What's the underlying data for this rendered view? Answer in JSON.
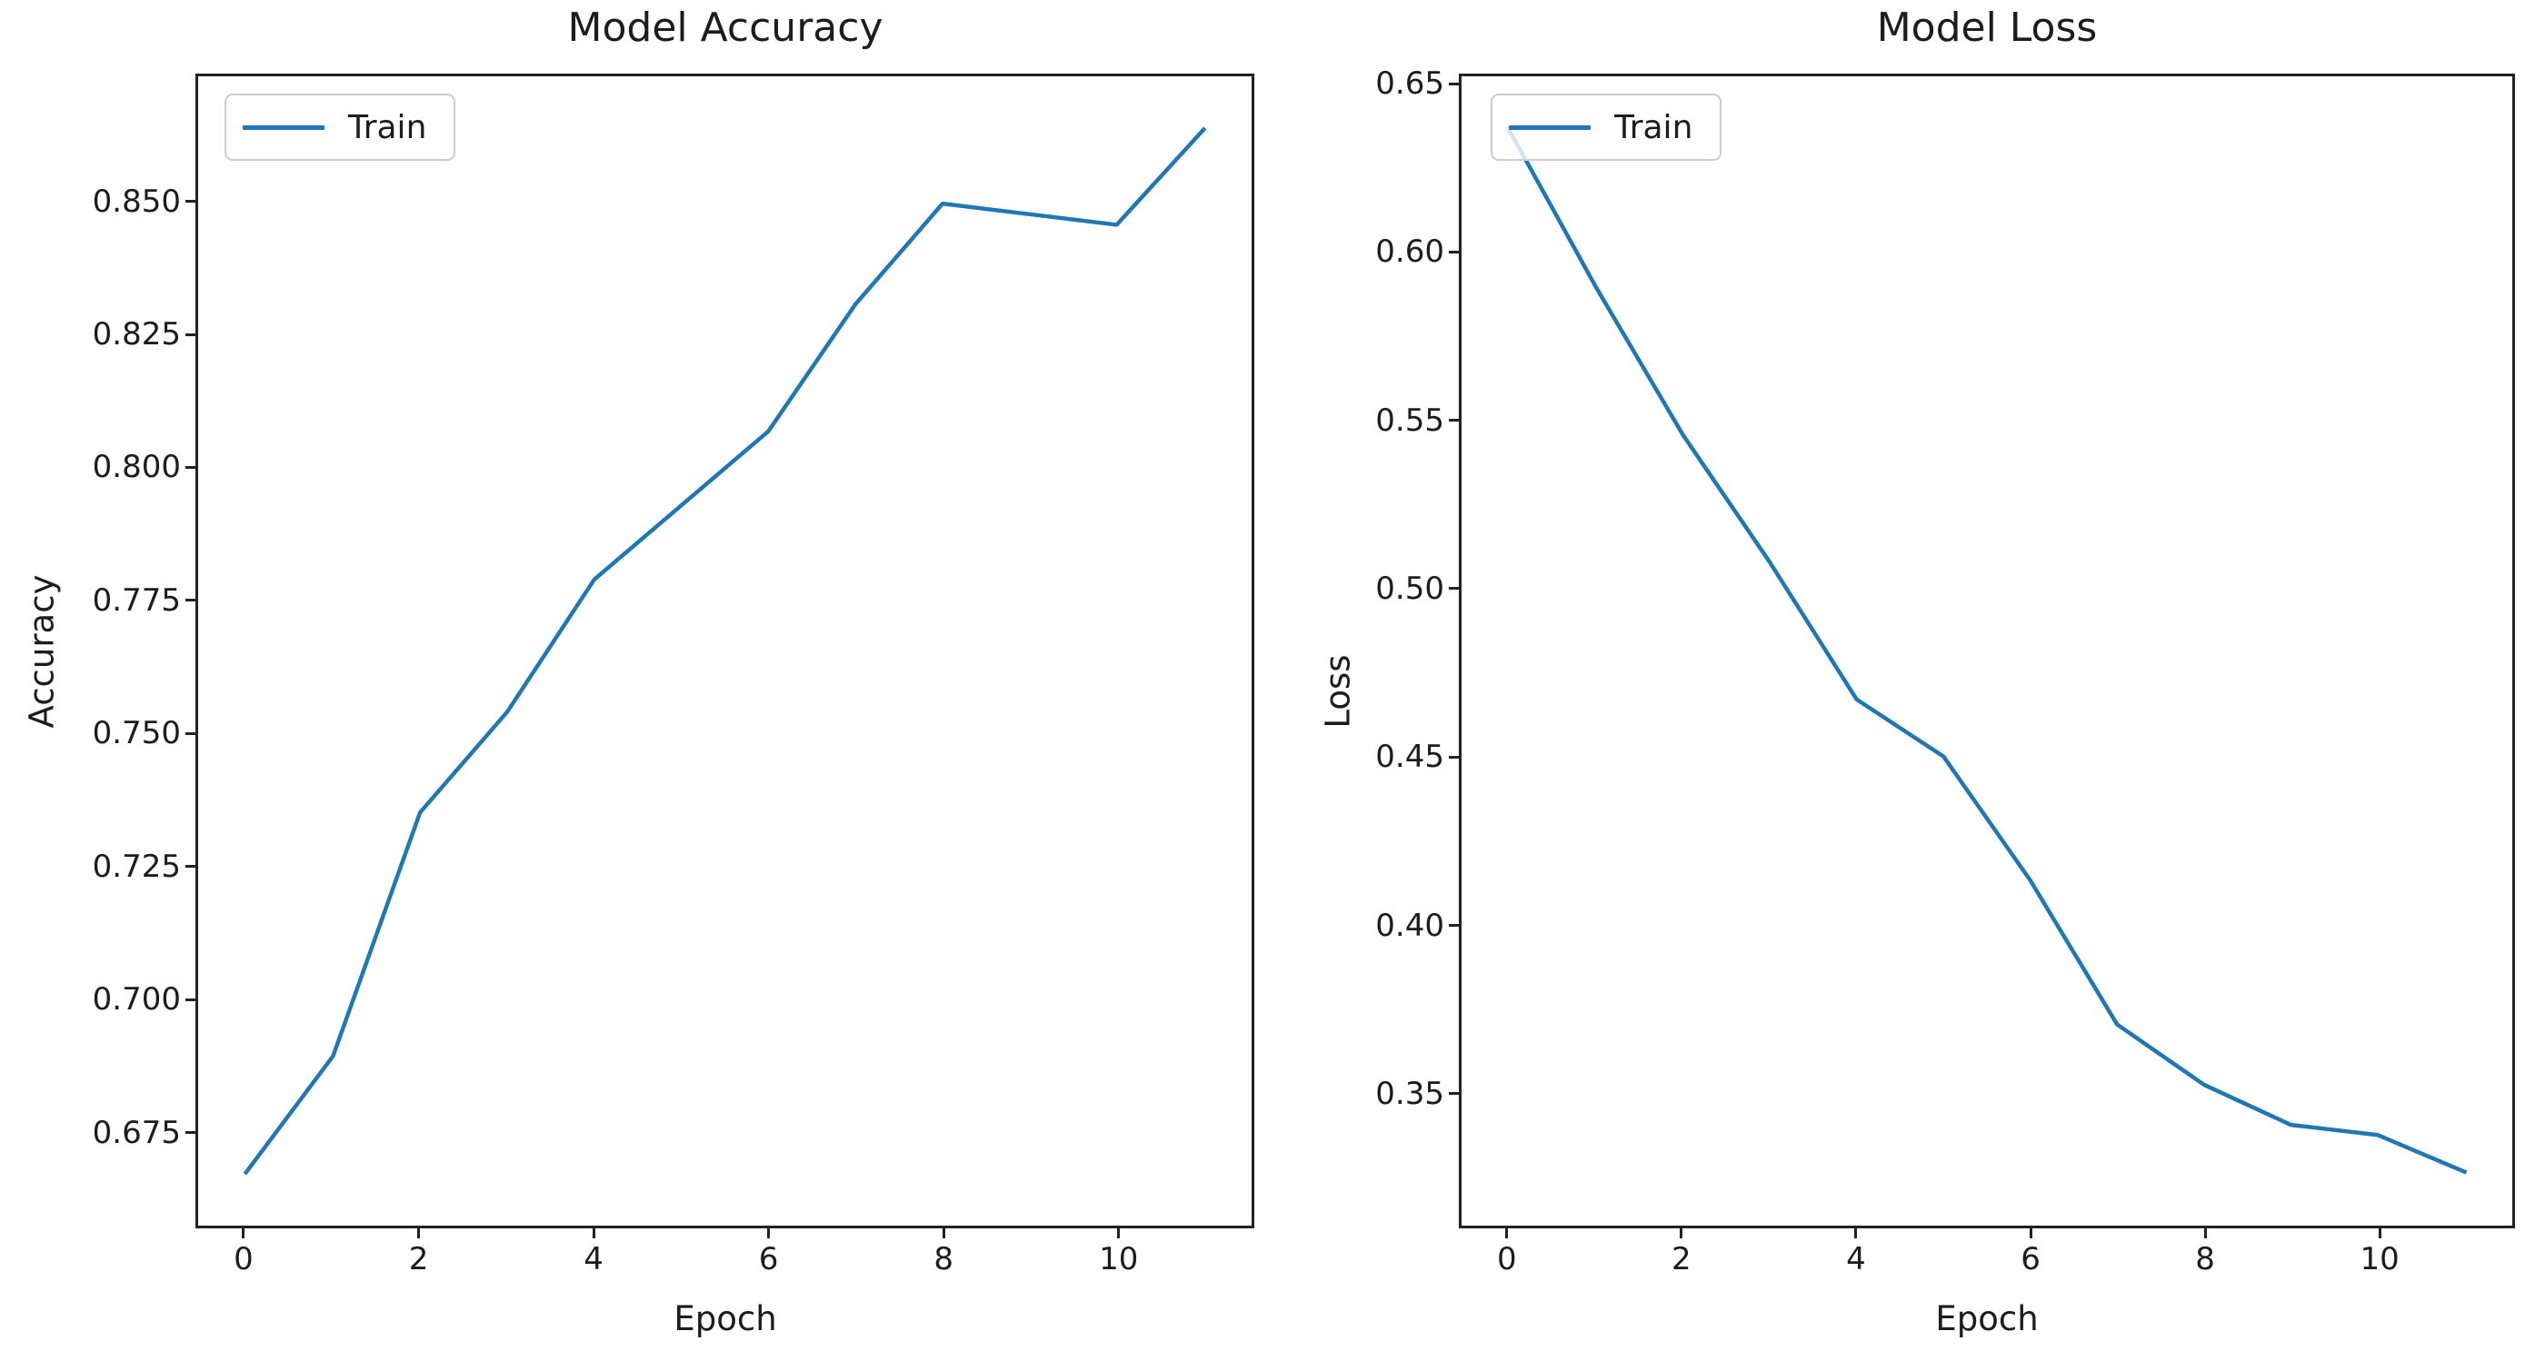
{
  "figure": {
    "background": "#ffffff",
    "accent_color": "#1f77b4",
    "text_color": "#1c1c1c"
  },
  "chart_data": [
    {
      "type": "line",
      "title": "Model Accuracy",
      "xlabel": "Epoch",
      "ylabel": "Accuracy",
      "legend_position": "upper left",
      "grid": false,
      "x": [
        0,
        1,
        2,
        3,
        4,
        5,
        6,
        7,
        8,
        9,
        10,
        11
      ],
      "series": [
        {
          "name": "Train",
          "color": "#1f77b4",
          "values": [
            0.667,
            0.689,
            0.735,
            0.754,
            0.779,
            0.793,
            0.807,
            0.831,
            0.85,
            0.848,
            0.846,
            0.864
          ]
        }
      ],
      "xlim": [
        -0.55,
        11.55
      ],
      "ylim": [
        0.657,
        0.874
      ],
      "xticks": [
        0,
        2,
        4,
        6,
        8,
        10
      ],
      "xtick_labels": [
        "0",
        "2",
        "4",
        "6",
        "8",
        "10"
      ],
      "yticks": [
        0.675,
        0.7,
        0.725,
        0.75,
        0.775,
        0.8,
        0.825,
        0.85
      ],
      "ytick_labels": [
        "0.675",
        "0.700",
        "0.725",
        "0.750",
        "0.775",
        "0.800",
        "0.825",
        "0.850"
      ]
    },
    {
      "type": "line",
      "title": "Model Loss",
      "xlabel": "Epoch",
      "ylabel": "Loss",
      "legend_position": "upper left",
      "grid": false,
      "x": [
        0,
        1,
        2,
        3,
        4,
        5,
        6,
        7,
        8,
        9,
        10,
        11
      ],
      "series": [
        {
          "name": "Train",
          "color": "#1f77b4",
          "values": [
            0.637,
            0.59,
            0.546,
            0.508,
            0.467,
            0.45,
            0.413,
            0.37,
            0.352,
            0.34,
            0.337,
            0.326
          ]
        }
      ],
      "xlim": [
        -0.55,
        11.55
      ],
      "ylim": [
        0.31,
        0.653
      ],
      "xticks": [
        0,
        2,
        4,
        6,
        8,
        10
      ],
      "xtick_labels": [
        "0",
        "2",
        "4",
        "6",
        "8",
        "10"
      ],
      "yticks": [
        0.35,
        0.4,
        0.45,
        0.5,
        0.55,
        0.6,
        0.65
      ],
      "ytick_labels": [
        "0.35",
        "0.40",
        "0.45",
        "0.50",
        "0.55",
        "0.60",
        "0.65"
      ]
    }
  ]
}
